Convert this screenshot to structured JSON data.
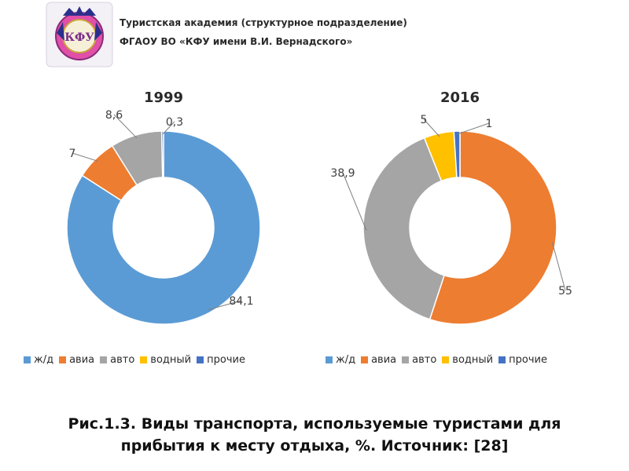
{
  "header": {
    "line1": "Туристская академия (структурное подразделение)",
    "line2": "ФГАОУ ВО «КФУ имени В.И. Вернадского»",
    "logo_text": "КФУ"
  },
  "colors": {
    "zh_d": "#5b9bd5",
    "avia": "#ed7d31",
    "avto": "#a5a5a5",
    "vodnyi": "#ffc000",
    "prochie": "#4472c4"
  },
  "chart_data": [
    {
      "type": "pie",
      "donut": true,
      "title": "1999",
      "categories": [
        "ж/д",
        "авиа",
        "авто",
        "водный",
        "прочие"
      ],
      "values": [
        84.1,
        7,
        8.6,
        0,
        0.3
      ],
      "data_labels": [
        "84,1",
        "7",
        "8,6",
        "",
        "0,3"
      ],
      "legend": [
        "ж/д",
        "авиа",
        "авто",
        "водный",
        "прочие"
      ],
      "legend_position": "bottom"
    },
    {
      "type": "pie",
      "donut": true,
      "title": "2016",
      "categories": [
        "ж/д",
        "авиа",
        "авто",
        "водный",
        "прочие"
      ],
      "values": [
        0,
        55,
        38.9,
        5,
        1
      ],
      "data_labels": [
        "",
        "55",
        "38,9",
        "5",
        "1"
      ],
      "legend": [
        "ж/д",
        "авиа",
        "авто",
        "водный",
        "прочие"
      ],
      "legend_position": "bottom"
    }
  ],
  "caption": {
    "line1": "Рис.1.3. Виды транспорта, используемые туристами для",
    "line2": "прибытия к месту отдыха, %. Источник: [28]"
  }
}
